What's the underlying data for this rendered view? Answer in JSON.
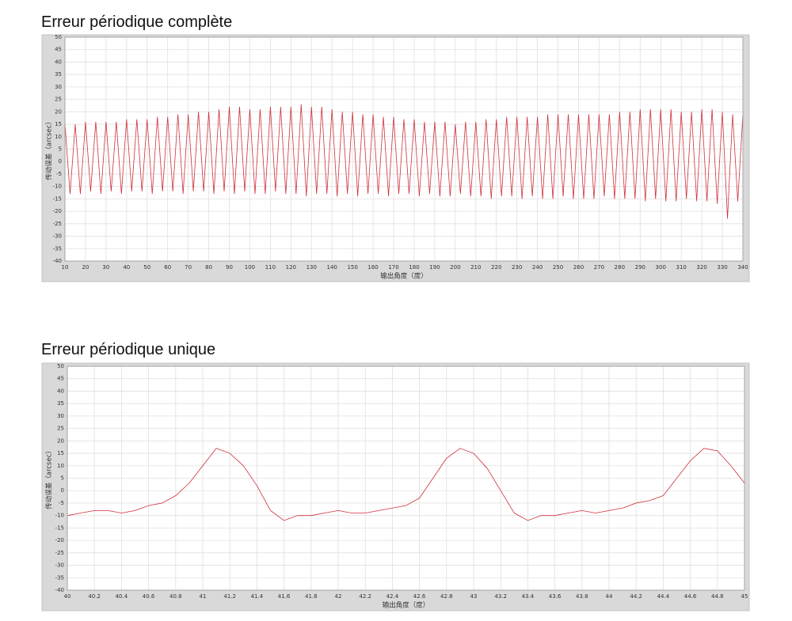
{
  "chart_data": [
    {
      "type": "line",
      "title": "Erreur périodique complète",
      "x_label": "输出角度（度）",
      "y_label": "传动误差（arcsec）",
      "color": "#d0303a",
      "grid": true,
      "x": [
        10,
        12.5,
        15,
        17.5,
        20,
        22.5,
        25,
        27.5,
        30,
        32.5,
        35,
        37.5,
        40,
        42.5,
        45,
        47.5,
        50,
        52.5,
        55,
        57.5,
        60,
        62.5,
        65,
        67.5,
        70,
        72.5,
        75,
        77.5,
        80,
        82.5,
        85,
        87.5,
        90,
        92.5,
        95,
        97.5,
        100,
        102.5,
        105,
        107.5,
        110,
        112.5,
        115,
        117.5,
        120,
        122.5,
        125,
        127.5,
        130,
        132.5,
        135,
        137.5,
        140,
        142.5,
        145,
        147.5,
        150,
        152.5,
        155,
        157.5,
        160,
        162.5,
        165,
        167.5,
        170,
        172.5,
        175,
        177.5,
        180,
        182.5,
        185,
        187.5,
        190,
        192.5,
        195,
        197.5,
        200,
        202.5,
        205,
        207.5,
        210,
        212.5,
        215,
        217.5,
        220,
        222.5,
        225,
        227.5,
        230,
        232.5,
        235,
        237.5,
        240,
        242.5,
        245,
        247.5,
        250,
        252.5,
        255,
        257.5,
        260,
        262.5,
        265,
        267.5,
        270,
        272.5,
        275,
        277.5,
        280,
        282.5,
        285,
        287.5,
        290,
        292.5,
        295,
        297.5,
        300,
        302.5,
        305,
        307.5,
        310,
        312.5,
        315,
        317.5,
        320,
        322.5,
        325,
        327.5,
        330,
        332.5,
        335,
        337.5,
        340
      ],
      "values": [
        15,
        -13,
        15,
        -13,
        16,
        -12,
        16,
        -13,
        16,
        -12,
        16,
        -13,
        17,
        -12,
        17,
        -12,
        17,
        -13,
        18,
        -12,
        18,
        -12,
        19,
        -13,
        19,
        -12,
        20,
        -12,
        20,
        -13,
        21,
        -12,
        22,
        -13,
        22,
        -12,
        21,
        -13,
        21,
        -13,
        22,
        -12,
        22,
        -13,
        22,
        -13,
        23,
        -14,
        22,
        -13,
        22,
        -13,
        21,
        -14,
        20,
        -13,
        20,
        -14,
        19,
        -13,
        19,
        -13,
        18,
        -14,
        18,
        -13,
        17,
        -13,
        17,
        -14,
        16,
        -13,
        16,
        -14,
        16,
        -14,
        15,
        -13,
        16,
        -14,
        16,
        -14,
        17,
        -15,
        17,
        -14,
        18,
        -14,
        18,
        -15,
        18,
        -14,
        18,
        -15,
        19,
        -15,
        19,
        -14,
        19,
        -15,
        19,
        -15,
        19,
        -15,
        19,
        -14,
        19,
        -15,
        20,
        -15,
        20,
        -15,
        21,
        -16,
        21,
        -15,
        21,
        -16,
        21,
        -16,
        20,
        -15,
        20,
        -16,
        21,
        -16,
        21,
        -17,
        20,
        -23,
        19,
        -16,
        19
      ],
      "xlim": [
        10,
        340
      ],
      "ylim": [
        -40,
        50
      ],
      "xticks": [
        10,
        20,
        30,
        40,
        50,
        60,
        70,
        80,
        90,
        100,
        110,
        120,
        130,
        140,
        150,
        160,
        170,
        180,
        190,
        200,
        210,
        220,
        230,
        240,
        250,
        260,
        270,
        280,
        290,
        300,
        310,
        320,
        330,
        340
      ],
      "yticks": [
        -40,
        -35,
        -30,
        -25,
        -20,
        -15,
        -10,
        -5,
        0,
        5,
        10,
        15,
        20,
        25,
        30,
        35,
        40,
        45,
        50
      ]
    },
    {
      "type": "line",
      "title": "Erreur périodique unique",
      "x_label": "输出角度（度）",
      "y_label": "传动误差（arcsec）",
      "color": "#d0303a",
      "grid": true,
      "x": [
        40,
        40.1,
        40.2,
        40.3,
        40.4,
        40.5,
        40.6,
        40.7,
        40.8,
        40.9,
        41,
        41.1,
        41.2,
        41.3,
        41.4,
        41.5,
        41.6,
        41.7,
        41.8,
        41.9,
        42,
        42.1,
        42.2,
        42.3,
        42.4,
        42.5,
        42.6,
        42.7,
        42.8,
        42.9,
        43,
        43.1,
        43.2,
        43.3,
        43.4,
        43.5,
        43.6,
        43.7,
        43.8,
        43.9,
        44,
        44.1,
        44.2,
        44.3,
        44.4,
        44.5,
        44.6,
        44.7,
        44.8,
        44.9,
        45
      ],
      "values": [
        -10,
        -9,
        -8,
        -8,
        -9,
        -8,
        -6,
        -5,
        -2,
        3,
        10,
        17,
        15,
        10,
        2,
        -8,
        -12,
        -10,
        -10,
        -9,
        -8,
        -9,
        -9,
        -8,
        -7,
        -6,
        -3,
        5,
        13,
        17,
        15,
        9,
        0,
        -9,
        -12,
        -10,
        -10,
        -9,
        -8,
        -9,
        -8,
        -7,
        -5,
        -4,
        -2,
        5,
        12,
        17,
        16,
        10,
        3
      ],
      "xlim": [
        40,
        45
      ],
      "ylim": [
        -40,
        50
      ],
      "xticks": [
        40,
        40.2,
        40.4,
        40.6,
        40.8,
        41,
        41.2,
        41.4,
        41.6,
        41.8,
        42,
        42.2,
        42.4,
        42.6,
        42.8,
        43,
        43.2,
        43.4,
        43.6,
        43.8,
        44,
        44.2,
        44.4,
        44.6,
        44.8,
        45
      ],
      "yticks": [
        -40,
        -35,
        -30,
        -25,
        -20,
        -15,
        -10,
        -5,
        0,
        5,
        10,
        15,
        20,
        25,
        30,
        35,
        40,
        45,
        50
      ]
    }
  ]
}
